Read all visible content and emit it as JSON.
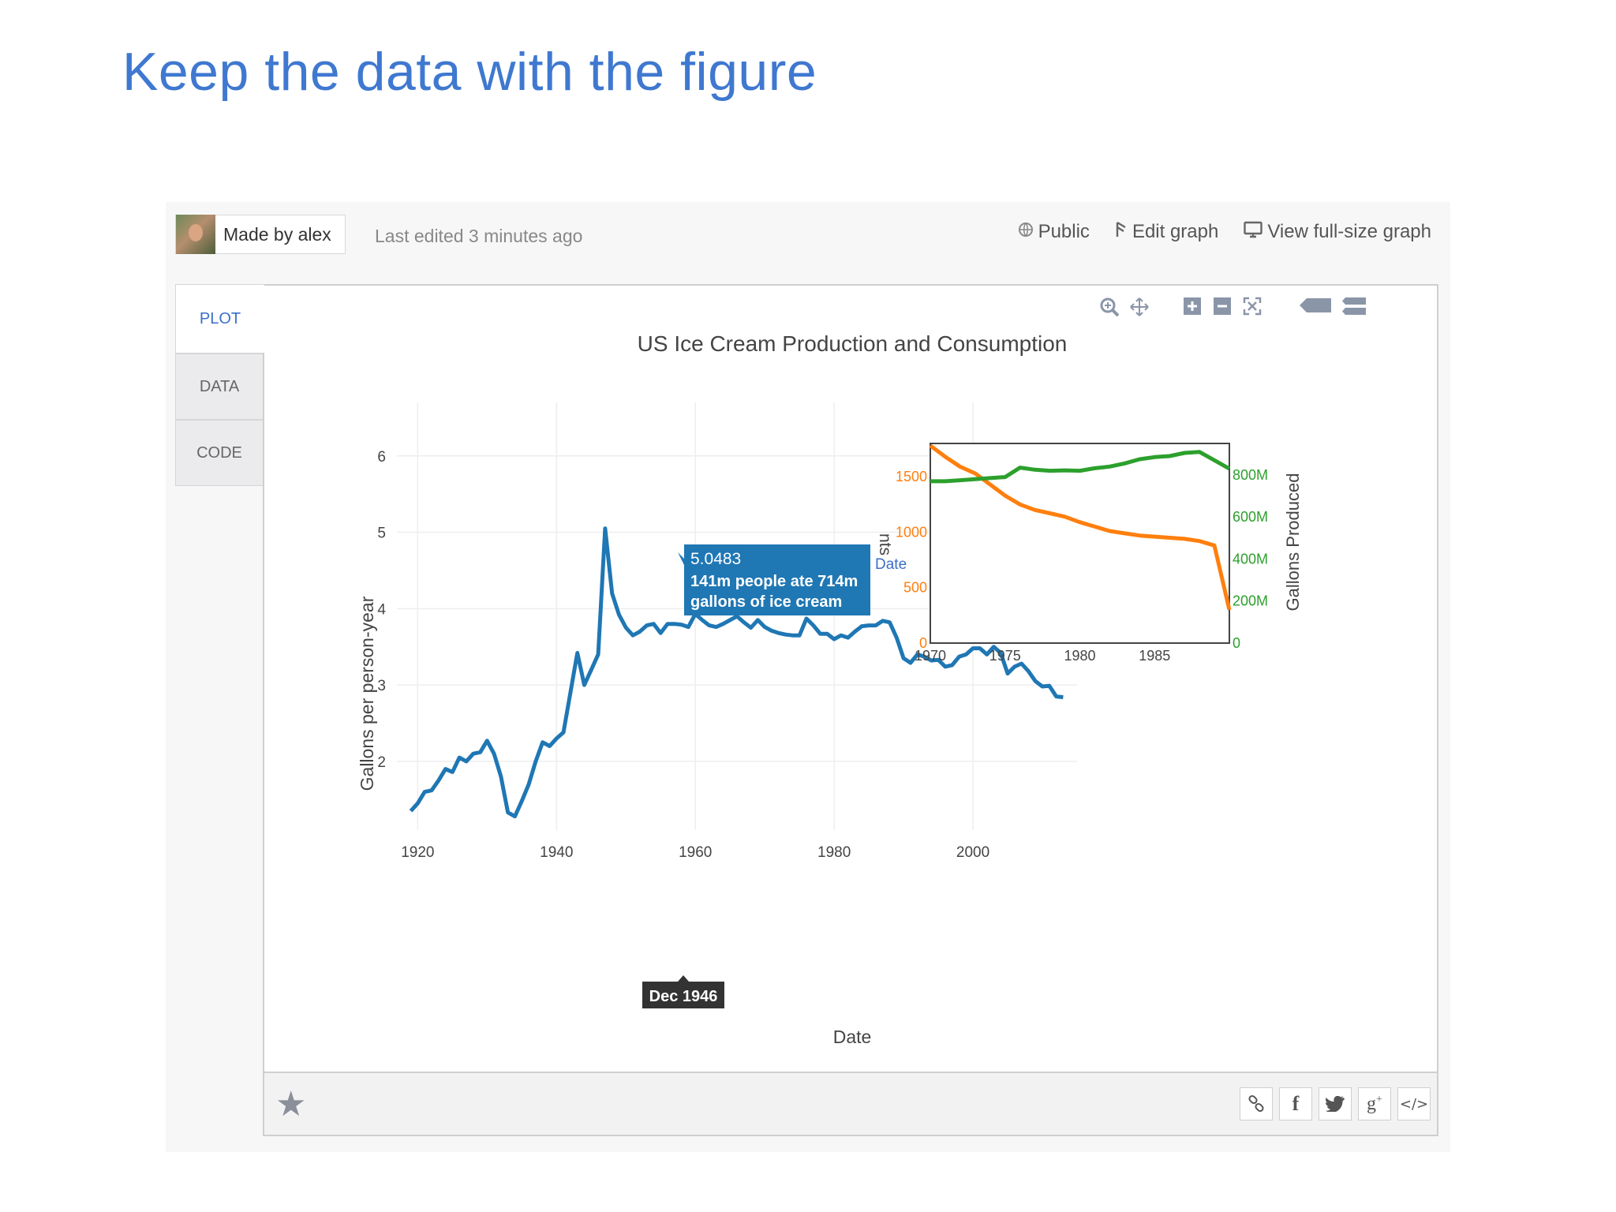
{
  "slide": {
    "title": "Keep the data with the figure"
  },
  "topbar": {
    "author": "Made by alex",
    "last_edited": "Last edited 3 minutes ago",
    "public_label": "Public",
    "edit_label": "Edit graph",
    "view_label": "View full-size graph"
  },
  "tabs": [
    {
      "label": "PLOT"
    },
    {
      "label": "DATA"
    },
    {
      "label": "CODE"
    }
  ],
  "modebar": [
    "zoom-icon",
    "pan-icon",
    "zoom-in-icon",
    "zoom-out-icon",
    "autoscale-icon",
    "hover-closest-icon",
    "hover-compare-icon"
  ],
  "share_buttons": [
    "link-icon",
    "facebook-icon",
    "twitter-icon",
    "google-plus-icon",
    "embed-code-icon"
  ],
  "chart_data": [
    {
      "type": "line",
      "title": "US Ice Cream Production and Consumption",
      "xlabel": "Date",
      "ylabel": "Gallons per person-year",
      "xlim": [
        1917,
        2015
      ],
      "ylim": [
        1.1,
        6.7
      ],
      "x_ticks": [
        1920,
        1940,
        1960,
        1980,
        2000
      ],
      "y_ticks": [
        2,
        3,
        4,
        5,
        6
      ],
      "grid": true,
      "color": "#1f77b4",
      "series": [
        {
          "x": [
            1919,
            1920,
            1921,
            1922,
            1923,
            1924,
            1925,
            1926,
            1927,
            1928,
            1929,
            1930,
            1931,
            1932,
            1933,
            1934,
            1935,
            1936,
            1937,
            1938,
            1939,
            1940,
            1941,
            1942,
            1943,
            1944,
            1945,
            1946,
            1947,
            1948,
            1949,
            1950,
            1951,
            1952,
            1953,
            1954,
            1955,
            1956,
            1957,
            1958,
            1959,
            1960,
            1961,
            1962,
            1963,
            1964,
            1965,
            1966,
            1967,
            1968,
            1969,
            1970,
            1971,
            1972,
            1973,
            1974,
            1975,
            1976,
            1977,
            1978,
            1979,
            1980,
            1981,
            1982,
            1983,
            1984,
            1985,
            1986,
            1987,
            1988,
            1989,
            1990,
            1991,
            1992,
            1993,
            1994,
            1995,
            1996,
            1997,
            1998,
            1999,
            2000,
            2001,
            2002,
            2003,
            2004,
            2005,
            2006,
            2007,
            2008,
            2009,
            2010,
            2011,
            2012,
            2013
          ],
          "y": [
            1.35,
            1.45,
            1.6,
            1.62,
            1.75,
            1.9,
            1.86,
            2.05,
            2.0,
            2.1,
            2.12,
            2.27,
            2.1,
            1.8,
            1.33,
            1.28,
            1.48,
            1.7,
            2.0,
            2.25,
            2.2,
            2.3,
            2.38,
            2.9,
            3.42,
            3.0,
            3.2,
            3.4,
            5.05,
            4.2,
            3.92,
            3.75,
            3.65,
            3.7,
            3.78,
            3.8,
            3.68,
            3.8,
            3.8,
            3.79,
            3.76,
            3.93,
            3.85,
            3.78,
            3.76,
            3.8,
            3.85,
            3.9,
            3.82,
            3.75,
            3.85,
            3.76,
            3.71,
            3.68,
            3.66,
            3.65,
            3.65,
            3.87,
            3.78,
            3.67,
            3.67,
            3.6,
            3.65,
            3.62,
            3.7,
            3.77,
            3.78,
            3.78,
            3.84,
            3.82,
            3.62,
            3.35,
            3.29,
            3.4,
            3.37,
            3.32,
            3.33,
            3.24,
            3.26,
            3.37,
            3.4,
            3.48,
            3.48,
            3.4,
            3.5,
            3.42,
            3.15,
            3.24,
            3.28,
            3.18,
            3.05,
            2.98,
            2.99,
            2.85,
            2.84
          ]
        }
      ],
      "hover": {
        "value": "5.0483",
        "line1": "141m people ate 714m",
        "line2": "gallons of ice cream",
        "x_label": "Dec 1946"
      }
    },
    {
      "type": "line",
      "title": "",
      "xlabel": "",
      "ylabel": "",
      "y2label": "Gallons Produced",
      "y_partial_label": "nts",
      "xlim": [
        1970,
        1990
      ],
      "ylim": [
        0,
        1800
      ],
      "y2lim": [
        0,
        950
      ],
      "x_ticks": [
        1970,
        1975,
        1980,
        1985
      ],
      "y_ticks": [
        {
          "v": 0,
          "t": "0"
        },
        {
          "v": 500,
          "t": "500"
        },
        {
          "v": 1000,
          "t": "1000"
        },
        {
          "v": 1500,
          "t": "1500"
        }
      ],
      "y2_ticks": [
        {
          "v": 0,
          "t": "0"
        },
        {
          "v": 200,
          "t": "200M"
        },
        {
          "v": 400,
          "t": "400M"
        },
        {
          "v": 600,
          "t": "600M"
        },
        {
          "v": 800,
          "t": "800M"
        }
      ],
      "hover_axis_label": "Date",
      "series": [
        {
          "axis": "y",
          "color": "#ff7f0e",
          "x": [
            1970,
            1971,
            1972,
            1973,
            1974,
            1975,
            1976,
            1977,
            1978,
            1979,
            1980,
            1981,
            1982,
            1983,
            1984,
            1985,
            1986,
            1987,
            1988,
            1989,
            1990
          ],
          "y": [
            1780,
            1680,
            1590,
            1530,
            1430,
            1330,
            1250,
            1200,
            1170,
            1140,
            1090,
            1050,
            1010,
            990,
            970,
            960,
            950,
            940,
            920,
            880,
            300
          ]
        },
        {
          "axis": "y2",
          "color": "#2ca02c",
          "x": [
            1970,
            1971,
            1972,
            1973,
            1974,
            1975,
            1976,
            1977,
            1978,
            1979,
            1980,
            1981,
            1982,
            1983,
            1984,
            1985,
            1986,
            1987,
            1988,
            1989,
            1990
          ],
          "y": [
            770,
            770,
            775,
            780,
            785,
            790,
            835,
            825,
            820,
            822,
            820,
            832,
            840,
            855,
            875,
            885,
            890,
            905,
            910,
            870,
            830
          ]
        }
      ]
    }
  ]
}
